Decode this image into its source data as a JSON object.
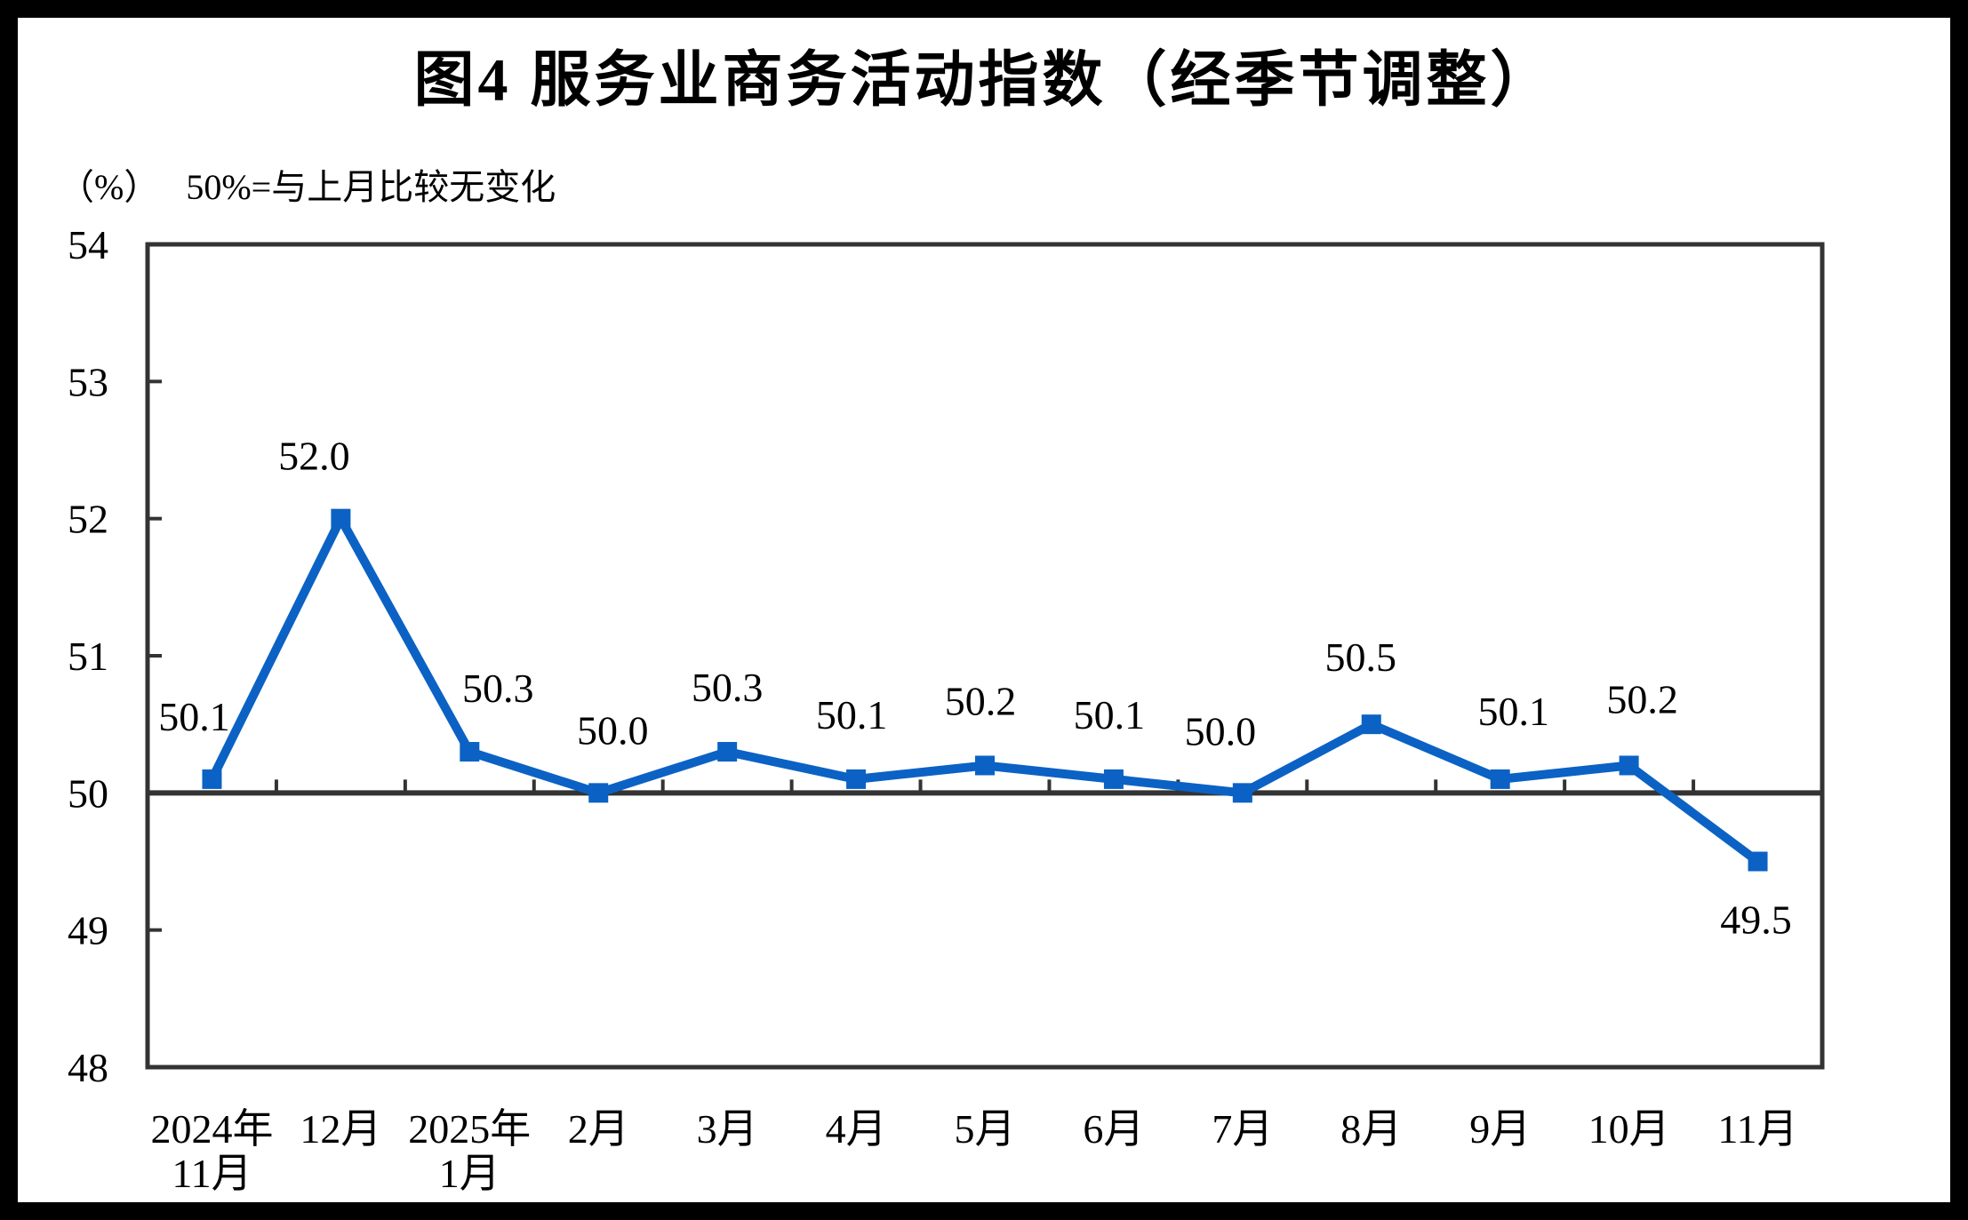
{
  "figure": {
    "title": "图4  服务业商务活动指数（经季节调整）",
    "unit_label": "（%）",
    "baseline_note": "50%=与上月比较无变化"
  },
  "chart_data": {
    "type": "line",
    "title": "图4  服务业商务活动指数（经季节调整）",
    "ylabel": "（%）",
    "annotation": "50%=与上月比较无变化",
    "categories": [
      "2024年\n11月",
      "12月",
      "2025年\n1月",
      "2月",
      "3月",
      "4月",
      "5月",
      "6月",
      "7月",
      "8月",
      "9月",
      "10月",
      "11月"
    ],
    "series": [
      {
        "name": "服务业商务活动指数（经季节调整）",
        "values": [
          50.1,
          52.0,
          50.3,
          50.0,
          50.3,
          50.1,
          50.2,
          50.1,
          50.0,
          50.5,
          50.1,
          50.2,
          49.5
        ]
      }
    ],
    "point_labels": [
      "50.1",
      "52.0",
      "50.3",
      "50.0",
      "50.3",
      "50.1",
      "50.2",
      "50.1",
      "50.0",
      "50.5",
      "50.1",
      "50.2",
      "49.5"
    ],
    "ylim": [
      48,
      54
    ],
    "yticks": [
      48,
      49,
      50,
      51,
      52,
      53,
      54
    ],
    "reference_line": 50,
    "grid": false,
    "legend_position": "none",
    "marker": "square",
    "colors": {
      "series": "#0B62C4",
      "axis": "#333333",
      "text": "#000000",
      "background": "#FFFFFF",
      "frame": "#000000"
    }
  }
}
